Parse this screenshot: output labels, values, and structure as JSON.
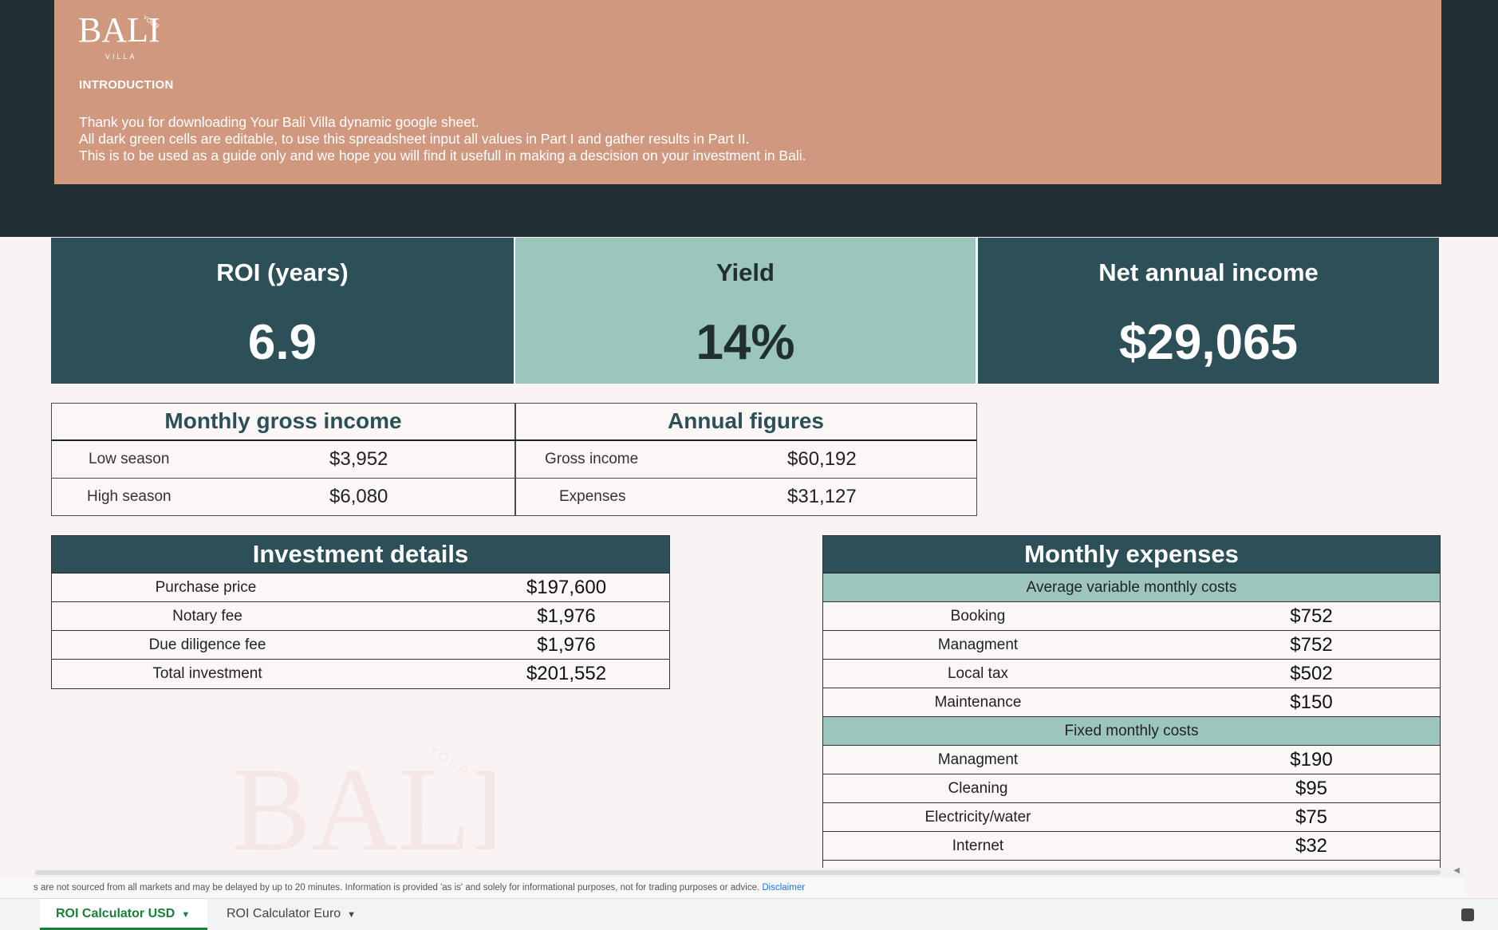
{
  "intro": {
    "logo_text": "BALI",
    "logo_your": "YOUR",
    "logo_sub": "VILLA",
    "heading": "INTRODUCTION",
    "lines": [
      "Thank you for downloading Your Bali Villa dynamic google sheet.",
      "All dark green cells are editable, to use this spreadsheet input all values in Part I and gather results in Part II.",
      "This is to be used as a guide only and we hope you will find it usefull in making a descision on your investment in Bali."
    ]
  },
  "kpis": [
    {
      "title": "ROI (years)",
      "value": "6.9"
    },
    {
      "title": "Yield",
      "value": "14%"
    },
    {
      "title": "Net annual income",
      "value": "$29,065"
    }
  ],
  "monthly_gross": {
    "title": "Monthly gross income",
    "rows": [
      {
        "label": "Low season",
        "value": "$3,952"
      },
      {
        "label": "High season",
        "value": "$6,080"
      }
    ]
  },
  "annual": {
    "title": "Annual figures",
    "rows": [
      {
        "label": "Gross income",
        "value": "$60,192"
      },
      {
        "label": "Expenses",
        "value": "$31,127"
      }
    ]
  },
  "investment": {
    "title": "Investment details",
    "rows": [
      {
        "label": "Purchase price",
        "value": "$197,600"
      },
      {
        "label": "Notary fee",
        "value": "$1,976"
      },
      {
        "label": "Due diligence fee",
        "value": "$1,976"
      },
      {
        "label": "Total investment",
        "value": "$201,552"
      }
    ]
  },
  "expenses": {
    "title": "Monthly expenses",
    "variable_title": "Average variable monthly costs",
    "variable": [
      {
        "label": "Booking",
        "value": "$752"
      },
      {
        "label": "Managment",
        "value": "$752"
      },
      {
        "label": "Local tax",
        "value": "$502"
      },
      {
        "label": "Maintenance",
        "value": "$150"
      }
    ],
    "fixed_title": "Fixed monthly costs",
    "fixed": [
      {
        "label": "Managment",
        "value": "$190"
      },
      {
        "label": "Cleaning",
        "value": "$95"
      },
      {
        "label": "Electricity/water",
        "value": "$75"
      },
      {
        "label": "Internet",
        "value": "$32"
      }
    ]
  },
  "footer": {
    "note": "s are not sourced from all markets and may be delayed by up to 20 minutes. Information is provided 'as is' and solely for informational purposes, not for trading purposes or advice.",
    "link": "Disclaimer"
  },
  "tabs": [
    {
      "label": "ROI Calculator USD"
    },
    {
      "label": "ROI Calculator Euro"
    }
  ],
  "colors": {
    "dark_teal": "#2d4f58",
    "light_teal": "#9cc5be",
    "terracotta": "#cf987f",
    "background_dark": "#222f32"
  }
}
